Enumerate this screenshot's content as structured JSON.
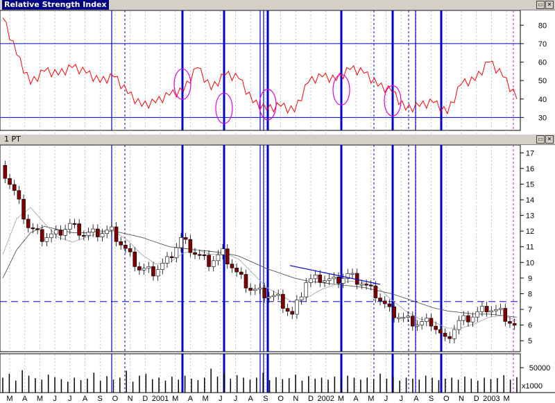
{
  "panels": {
    "rsi": {
      "title": "Relative Strength Index"
    },
    "price": {
      "title": "1 PT"
    },
    "volume_unit": "x1000"
  },
  "colors": {
    "rsi_line": "#ff0000",
    "vertical_lines": "#0000cc",
    "circles": "#e000e0",
    "candle_down": "#800000",
    "candle_up": "#ffffff",
    "volume_bars": "#000000",
    "moving_average": "#808080"
  },
  "chart_data": [
    {
      "type": "line",
      "name": "rsi",
      "ylim": [
        23,
        88
      ],
      "y_ticks": [
        30,
        40,
        50,
        60,
        70,
        80
      ],
      "reference_lines": [
        30,
        70
      ],
      "x": [
        0,
        1,
        2,
        3,
        4,
        5,
        6,
        7,
        8,
        9,
        10,
        11,
        12,
        13,
        14,
        15,
        16,
        17,
        18,
        19,
        20,
        21,
        22,
        23,
        24,
        25,
        26,
        27,
        28,
        29,
        30,
        31,
        32,
        33,
        34,
        35,
        36,
        37
      ],
      "values": [
        84,
        64,
        48,
        55,
        53,
        57,
        54,
        49,
        52,
        43,
        36,
        38,
        42,
        44,
        57,
        45,
        53,
        51,
        38,
        34,
        36,
        33,
        49,
        52,
        50,
        56,
        54,
        47,
        44,
        34,
        36,
        38,
        32,
        48,
        50,
        60,
        52,
        40
      ]
    },
    {
      "type": "candlestick",
      "name": "price",
      "ylim": [
        4.3,
        17.5
      ],
      "y_ticks": [
        5,
        6,
        7,
        8,
        9,
        10,
        11,
        12,
        13,
        14,
        15,
        16,
        17
      ],
      "horizontal_line": 7.5,
      "x": [
        0,
        1,
        2,
        3,
        4,
        5,
        6,
        7,
        8,
        9,
        10,
        11,
        12,
        13,
        14,
        15,
        16,
        17,
        18,
        19,
        20,
        21,
        22,
        23,
        24,
        25,
        26,
        27,
        28,
        29,
        30,
        31,
        32,
        33,
        34,
        35,
        36,
        37
      ],
      "close": [
        16.2,
        14.5,
        12.3,
        11.6,
        11.8,
        12.4,
        11.8,
        11.9,
        12.0,
        10.8,
        9.6,
        9.4,
        10.1,
        11.5,
        10.6,
        10.0,
        10.6,
        9.3,
        8.3,
        8.0,
        7.7,
        6.6,
        8.8,
        9.0,
        8.8,
        9.2,
        8.7,
        8.0,
        6.9,
        6.4,
        6.1,
        6.2,
        5.0,
        6.2,
        6.6,
        7.1,
        6.8,
        5.9
      ],
      "ma_long": [
        9.0,
        10.8,
        11.9,
        12.3,
        12.1,
        11.9,
        11.9,
        12.0,
        12.0,
        11.8,
        11.6,
        11.3,
        11.0,
        10.9,
        10.8,
        10.7,
        10.6,
        10.4,
        10.0,
        9.6,
        9.3,
        9.0,
        8.8,
        8.7,
        8.6,
        8.5,
        8.4,
        8.2,
        8.0,
        7.7,
        7.4,
        7.1,
        6.9,
        6.8,
        6.7,
        6.7,
        6.6,
        6.5
      ],
      "ma_short": [
        10.5,
        12.8,
        13.5,
        12.5,
        11.6,
        11.3,
        11.6,
        11.9,
        12.0,
        11.4,
        10.5,
        9.9,
        10.0,
        10.6,
        10.8,
        10.5,
        10.6,
        10.2,
        9.3,
        8.4,
        7.9,
        7.4,
        7.8,
        8.3,
        8.6,
        8.8,
        8.7,
        8.4,
        7.6,
        6.9,
        6.4,
        6.2,
        5.8,
        5.8,
        6.1,
        6.5,
        6.6,
        6.3
      ]
    },
    {
      "type": "bar",
      "name": "volume",
      "ylim": [
        0,
        78000
      ],
      "y_ticks": [
        50000
      ],
      "values": [
        30000,
        38000,
        24000,
        45000,
        34000,
        29000,
        26000,
        36000,
        31000,
        27000,
        22000,
        30000,
        25000,
        28000,
        40000,
        24000,
        33000,
        26000,
        30000,
        44000,
        22000,
        34000,
        38000,
        27000,
        30000,
        24000,
        32000,
        26000,
        34000,
        28000,
        25000,
        30000,
        48000,
        32000,
        38000,
        28000,
        35000,
        30000,
        26000,
        30000,
        40000,
        25000,
        31000,
        27000,
        29000,
        36000,
        24000,
        33000,
        28000,
        30000,
        26000,
        32000,
        28000,
        34000,
        30000,
        26000,
        30000,
        27000,
        38000,
        28000,
        32000,
        24000,
        30000,
        28000,
        26000,
        34000,
        30000,
        25000,
        28000,
        30000,
        26000,
        32000,
        28000,
        24000,
        30000,
        27000,
        29000,
        35000,
        26000,
        31000
      ]
    }
  ],
  "x_axis": {
    "labels": [
      "M",
      "A",
      "M",
      "J",
      "J",
      "A",
      "S",
      "O",
      "N",
      "D",
      "2001",
      "M",
      "A",
      "M",
      "J",
      "J",
      "A",
      "S",
      "O",
      "N",
      "D",
      "2002",
      "M",
      "A",
      "M",
      "J",
      "J",
      "A",
      "S",
      "O",
      "N",
      "D",
      "2003",
      "M"
    ]
  },
  "vertical_lines": {
    "thick": [
      263,
      323,
      386,
      492,
      566,
      636
    ],
    "thin": [
      161,
      375,
      380,
      599
    ],
    "dashed": [
      180,
      539,
      589
    ],
    "magenta_dashed": [
      740
    ]
  },
  "circles": [
    {
      "x": 0,
      "y": 48
    },
    {
      "x": 0,
      "y": 35
    },
    {
      "x": 0,
      "y": 37
    },
    {
      "x": 0,
      "y": 45
    },
    {
      "x": 0,
      "y": 39
    }
  ],
  "trendline": {
    "start": 9.8,
    "end": 8.6
  }
}
